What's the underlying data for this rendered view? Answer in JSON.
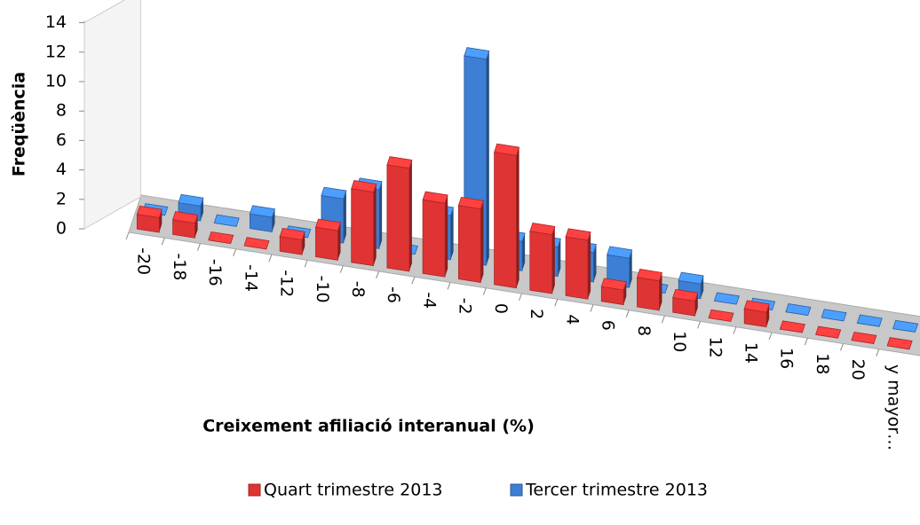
{
  "chart_data": {
    "type": "bar",
    "xlabel": "Creixement afiliació interanual (%)",
    "ylabel": "Freqüència",
    "categories": [
      "-20",
      "-18",
      "-16",
      "-14",
      "-12",
      "-10",
      "-8",
      "-6",
      "-4",
      "-2",
      "0",
      "2",
      "4",
      "6",
      "8",
      "10",
      "12",
      "14",
      "16",
      "18",
      "20",
      "y mayor…"
    ],
    "series": [
      {
        "name": "Quart trimestre 2013",
        "color": "#e03434",
        "values": [
          1,
          1,
          0,
          0,
          1,
          2,
          5,
          7,
          5,
          5,
          9,
          4,
          4,
          1,
          2,
          1,
          0,
          1,
          0,
          0,
          0,
          0
        ]
      },
      {
        "name": "Tercer trimestre 2013",
        "color": "#3d7fd4",
        "values": [
          0,
          1,
          0,
          1,
          0,
          3,
          4,
          0,
          3,
          14,
          2,
          2,
          2,
          2,
          0,
          1,
          0,
          0,
          0,
          0,
          0,
          0
        ]
      }
    ],
    "ylim": [
      0,
      14
    ],
    "yticks": [
      0,
      2,
      4,
      6,
      8,
      10,
      12,
      14
    ],
    "legend": "bottom"
  }
}
